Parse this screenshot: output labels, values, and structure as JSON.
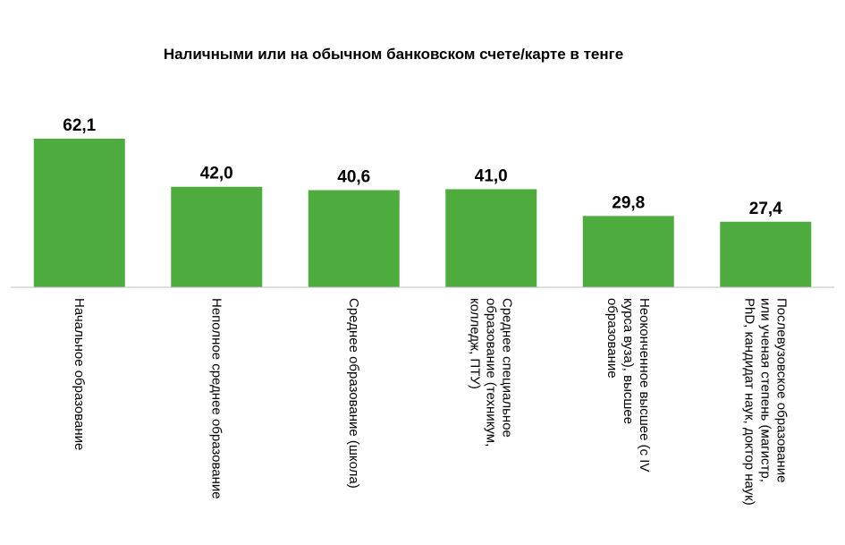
{
  "chart_data": {
    "type": "bar",
    "title": "Наличными или на обычном банковском счете/карте в тенге",
    "xlabel": "",
    "ylabel": "",
    "categories": [
      [
        "Начальное образование"
      ],
      [
        "Неполное среднее образование"
      ],
      [
        "Среднее образование (школа)"
      ],
      [
        "Среднее специальное",
        "образование (техникум,",
        "колледж, ПТУ)"
      ],
      [
        "Неоконченное высшее (с IV",
        "курса вуза), высшее",
        "образование"
      ],
      [
        "Послевузовское образование",
        "или ученая степень (магистр,",
        "PhD, кандидат наук, доктор наук)"
      ]
    ],
    "values": [
      62.1,
      42.0,
      40.6,
      41.0,
      29.8,
      27.4
    ],
    "value_labels": [
      "62,1",
      "42,0",
      "40,6",
      "41,0",
      "29,8",
      "27,4"
    ],
    "ylim": [
      0,
      70
    ],
    "grid": false,
    "legend": "none",
    "bar_color": "#4EAC3F",
    "axis_color": "#BFBFBF"
  }
}
